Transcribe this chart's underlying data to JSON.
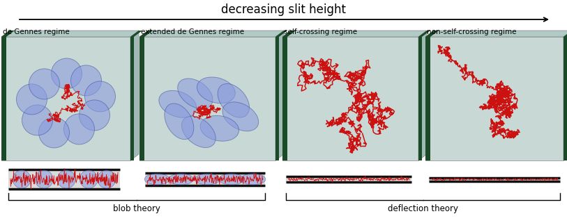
{
  "title": "decreasing slit height",
  "regimes": [
    "de Gennes regime",
    "extended de Gennes regime",
    "self-crossing regime",
    "non-self-crossing regime"
  ],
  "blob_theory_label": "blob theory",
  "deflection_theory_label": "deflection theory",
  "panel_bg": "#c8d8d5",
  "panel_top_bg": "#b0cac6",
  "panel_right_bg": "#a0bab6",
  "sidewall_color": "#1a4a28",
  "dna_color": "#cc1111",
  "blob_color": "#8899dd",
  "blob_alpha": 0.55,
  "fig_bg": "#ffffff",
  "arrow_color": "#111111",
  "title_fontsize": 12,
  "label_fontsize": 7.5,
  "brace_fontsize": 8.5
}
